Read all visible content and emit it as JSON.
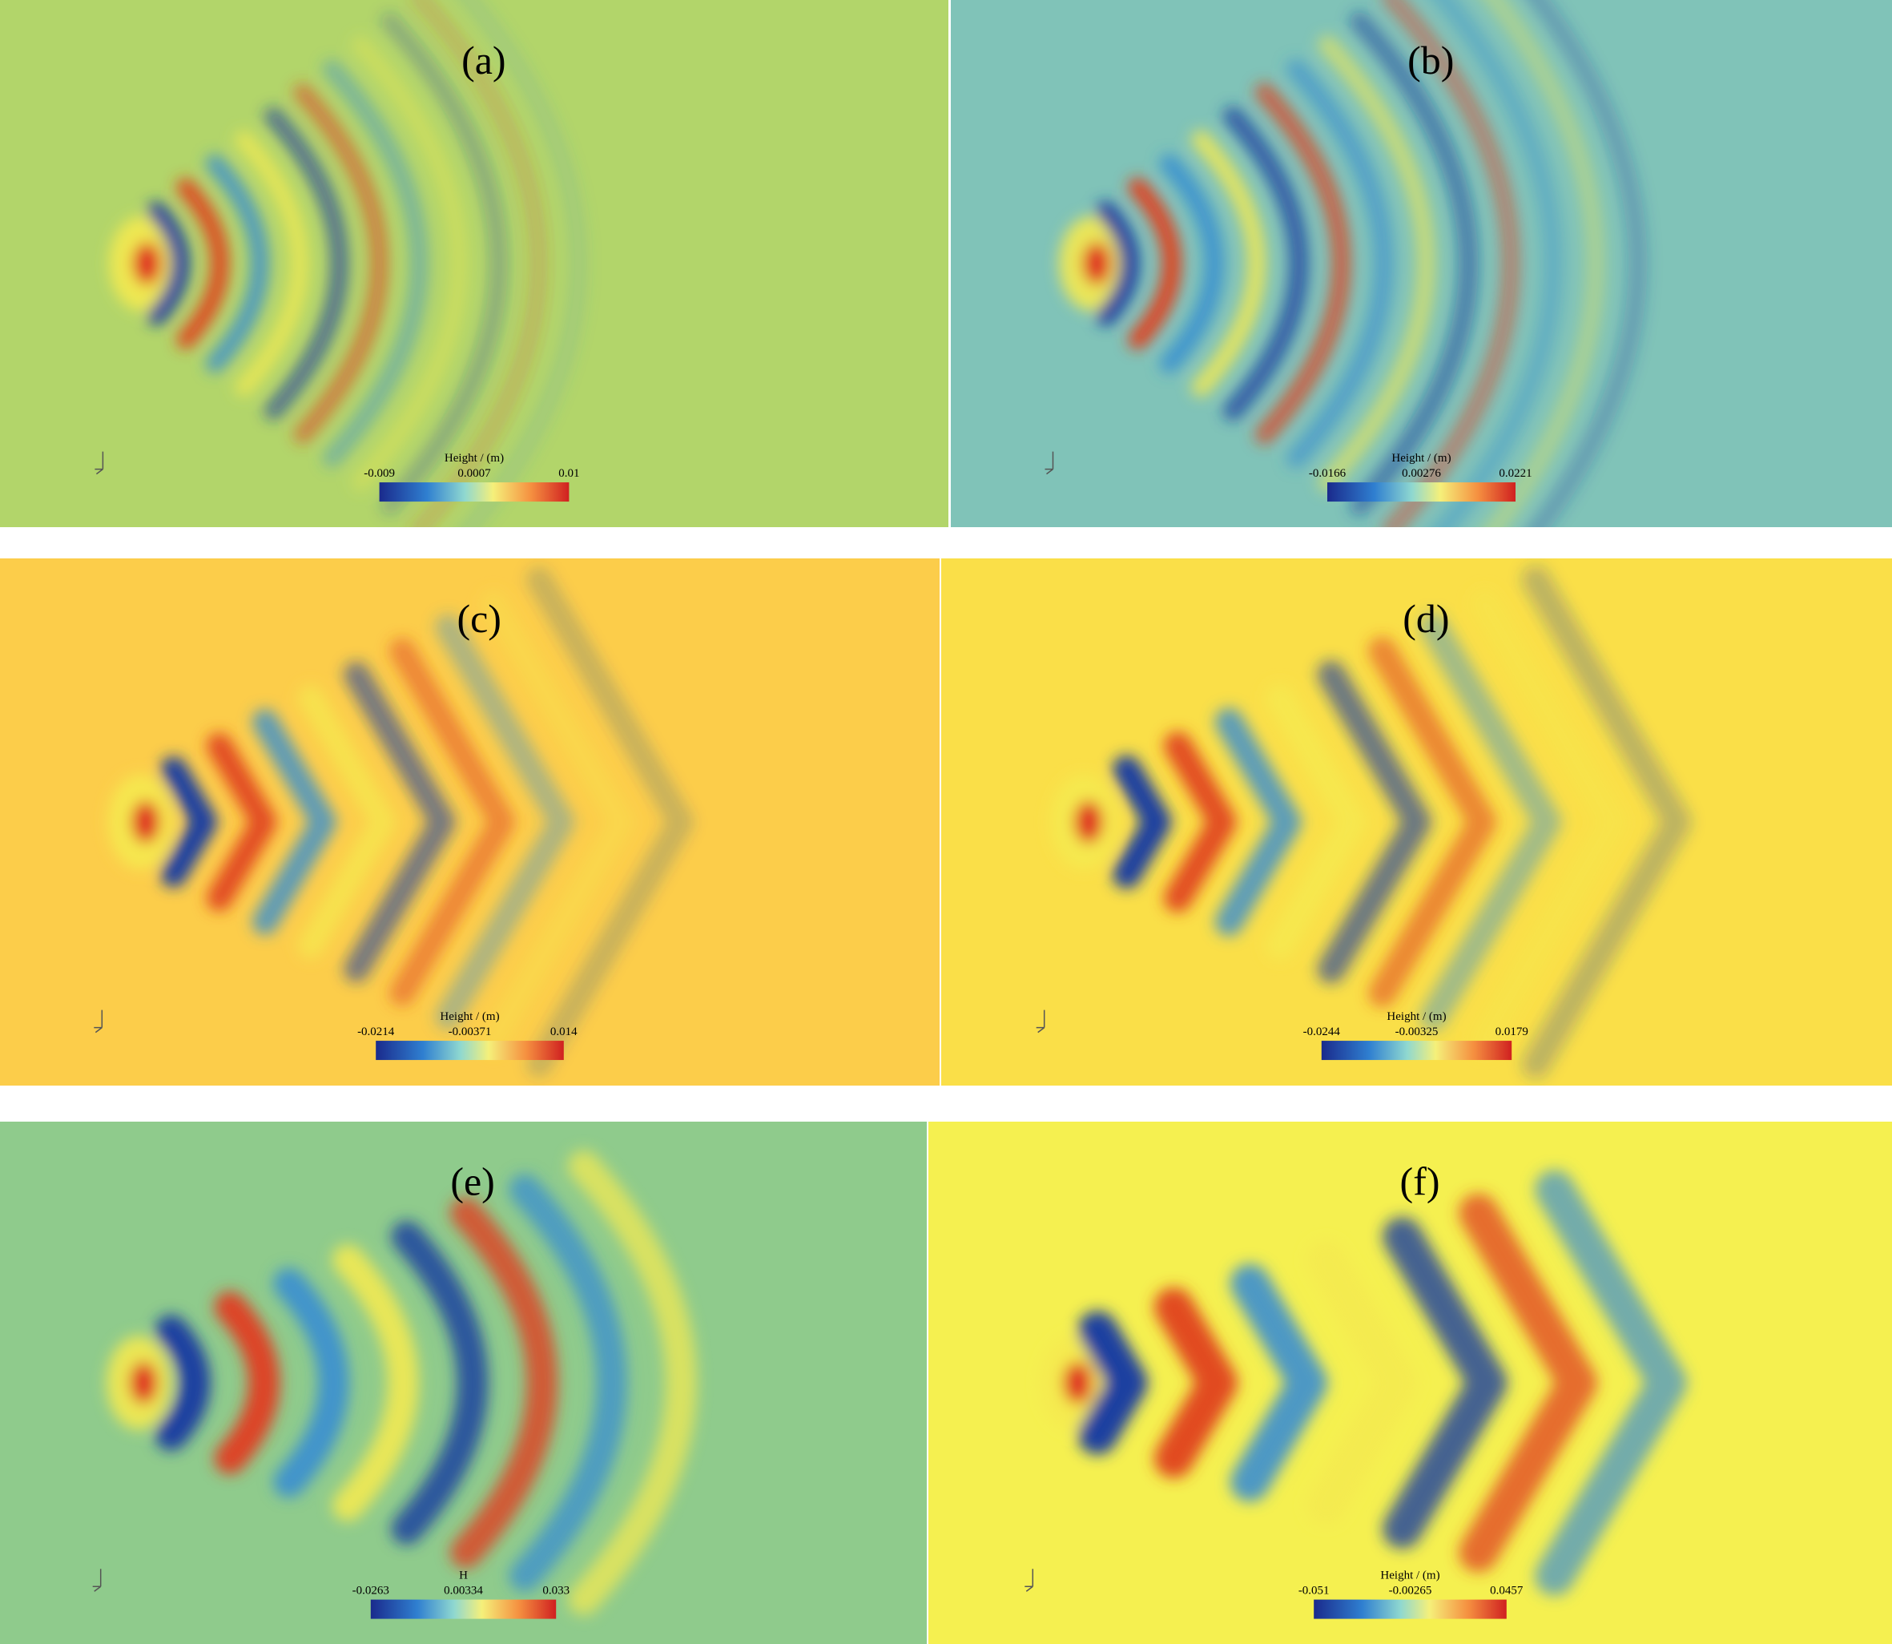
{
  "panels": [
    {
      "label": "(a)",
      "colorbar": {
        "title": "Height / (m)",
        "min": "-0.009",
        "mid": "0.0007",
        "max": "0.01"
      }
    },
    {
      "label": "(b)",
      "colorbar": {
        "title": "Height / (m)",
        "min": "-0.0166",
        "mid": "0.00276",
        "max": "0.0221"
      }
    },
    {
      "label": "(c)",
      "colorbar": {
        "title": "Height / (m)",
        "min": "-0.0214",
        "mid": "-0.00371",
        "max": "0.014"
      }
    },
    {
      "label": "(d)",
      "colorbar": {
        "title": "Height / (m)",
        "min": "-0.0244",
        "mid": "-0.00325",
        "max": "0.0179"
      }
    },
    {
      "label": "(e)",
      "colorbar": {
        "title": "H",
        "min": "-0.0263",
        "mid": "0.00334",
        "max": "0.033"
      }
    },
    {
      "label": "(f)",
      "colorbar": {
        "title": "Height / (m)",
        "min": "-0.051",
        "mid": "-0.00265",
        "max": "0.0457"
      }
    }
  ]
}
